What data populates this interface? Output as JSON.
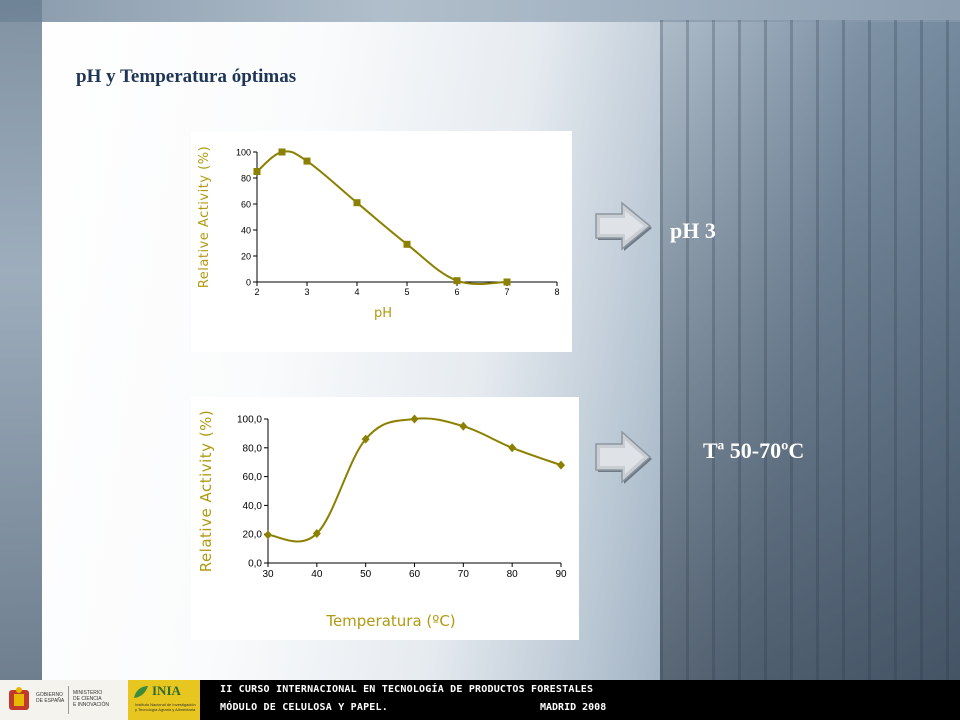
{
  "slide": {
    "title": "pH y Temperatura óptimas",
    "results": {
      "ph": "pH 3",
      "temperature": "Tª 50-70ºC"
    }
  },
  "footer": {
    "line1": "II CURSO INTERNACIONAL EN TECNOLOGÍA DE PRODUCTOS FORESTALES",
    "line2": "MÓDULO DE CELULOSA Y PAPEL.",
    "place": "MADRID 2008",
    "logos": {
      "gobierno": [
        "GOBIERNO",
        "DE ESPAÑA"
      ],
      "ministerio": [
        "MINISTERIO",
        "DE CIENCIA",
        "E INNOVACIÓN"
      ],
      "inia_name": "INIA",
      "inia_sub": [
        "Instituto Nacional de Investigación",
        "y Tecnología Agraria y Alimentaria"
      ]
    }
  },
  "colors": {
    "series": "#8b8000",
    "axis_label": "#b09a10",
    "arrow": "#a4abb3",
    "result_text": "#ffffff",
    "title": "#1f3556"
  },
  "chart_data": [
    {
      "type": "line",
      "title": "",
      "xlabel": "pH",
      "ylabel": "Relative Activity (%)",
      "x": [
        2,
        2.5,
        3,
        4,
        5,
        6,
        7
      ],
      "y": [
        85,
        100,
        93,
        61,
        29,
        1,
        0
      ],
      "xlim": [
        2,
        8
      ],
      "ylim": [
        0,
        100
      ],
      "xticks": [
        "2",
        "3",
        "4",
        "5",
        "6",
        "7",
        "8"
      ],
      "yticks": [
        "0",
        "20",
        "40",
        "60",
        "80",
        "100"
      ],
      "marker": "square",
      "grid": false,
      "legend": "none"
    },
    {
      "type": "line",
      "title": "",
      "xlabel": "Temperatura (ºC)",
      "ylabel": "Relative Activity (%)",
      "x": [
        30,
        40,
        50,
        60,
        70,
        80,
        90
      ],
      "y": [
        19.5,
        20.5,
        86,
        100,
        95,
        80,
        68
      ],
      "xlim": [
        30,
        90
      ],
      "ylim": [
        0,
        100
      ],
      "xticks": [
        "30",
        "40",
        "50",
        "60",
        "70",
        "80",
        "90"
      ],
      "yticks": [
        "0,0",
        "20,0",
        "40,0",
        "60,0",
        "80,0",
        "100,0"
      ],
      "marker": "diamond",
      "grid": false,
      "legend": "none"
    }
  ]
}
